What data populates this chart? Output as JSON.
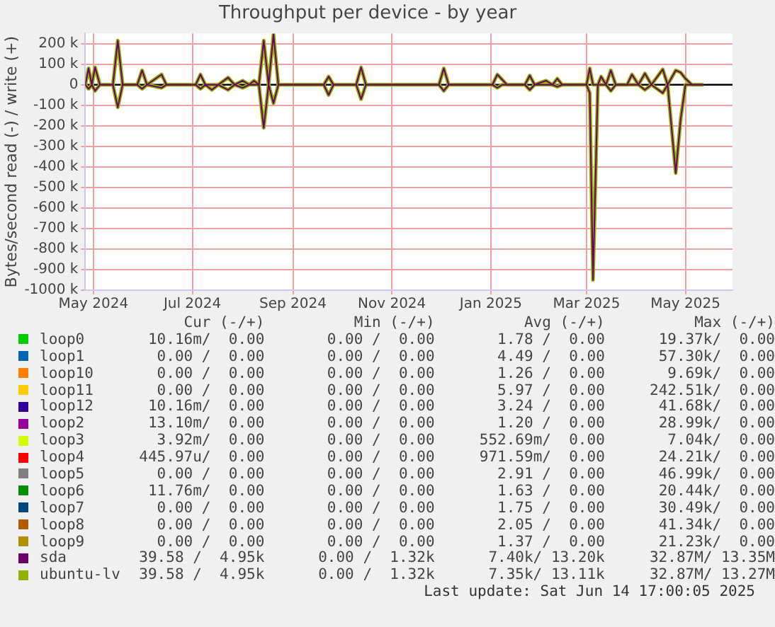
{
  "chart_data": {
    "type": "line",
    "title": "Throughput per device - by year",
    "ylabel": "Bytes/second read (-) / write (+)",
    "x": [
      "2024-04-26",
      "2024-04-28",
      "2024-04-30",
      "2024-05-02",
      "2024-05-05",
      "2024-05-13",
      "2024-05-16",
      "2024-05-19",
      "2024-05-28",
      "2024-05-31",
      "2024-06-03",
      "2024-06-12",
      "2024-06-15",
      "2024-07-03",
      "2024-07-06",
      "2024-07-09",
      "2024-07-13",
      "2024-07-17",
      "2024-07-23",
      "2024-07-27",
      "2024-08-01",
      "2024-08-05",
      "2024-08-08",
      "2024-08-11",
      "2024-08-14",
      "2024-08-17",
      "2024-08-20",
      "2024-08-23",
      "2024-09-20",
      "2024-09-23",
      "2024-09-26",
      "2024-10-10",
      "2024-10-13",
      "2024-10-16",
      "2024-11-30",
      "2024-12-03",
      "2024-12-06",
      "2025-01-02",
      "2025-01-05",
      "2025-01-08",
      "2025-01-11",
      "2025-01-22",
      "2025-01-25",
      "2025-01-28",
      "2025-02-04",
      "2025-02-08",
      "2025-02-11",
      "2025-02-14",
      "2025-03-01",
      "2025-03-03",
      "2025-03-05",
      "2025-03-08",
      "2025-03-10",
      "2025-03-13",
      "2025-03-16",
      "2025-03-19",
      "2025-03-26",
      "2025-03-29",
      "2025-04-02",
      "2025-04-06",
      "2025-04-10",
      "2025-04-17",
      "2025-04-20",
      "2025-04-25",
      "2025-04-28",
      "2025-05-01",
      "2025-05-05",
      "2025-05-12"
    ],
    "series": [
      {
        "name": "loop0",
        "color": "#00cc00",
        "values": [
          null,
          null,
          null,
          null,
          null,
          null,
          null,
          null,
          null,
          null,
          null,
          null,
          null,
          null,
          null,
          null,
          null,
          null,
          null,
          null,
          null,
          null,
          null,
          null,
          null,
          null,
          null,
          null,
          null,
          null,
          null,
          null,
          null,
          null,
          null,
          null,
          null,
          null,
          null,
          null,
          null,
          null,
          null,
          null,
          null,
          null,
          null,
          null,
          null,
          null,
          null,
          null,
          null,
          null,
          null,
          null,
          null,
          null,
          null,
          null,
          null,
          null,
          null,
          null,
          null,
          null,
          null,
          null
        ]
      },
      {
        "name": "loop1",
        "color": "#0066b3",
        "values": [
          null,
          null,
          null,
          null,
          null,
          null,
          null,
          null,
          null,
          null,
          null,
          null,
          null,
          null,
          null,
          null,
          null,
          null,
          null,
          null,
          null,
          null,
          null,
          null,
          null,
          null,
          null,
          null,
          null,
          null,
          null,
          null,
          null,
          null,
          null,
          null,
          null,
          null,
          null,
          null,
          null,
          null,
          null,
          null,
          null,
          null,
          null,
          null,
          null,
          null,
          null,
          null,
          null,
          null,
          null,
          null,
          null,
          null,
          null,
          null,
          null,
          null,
          null,
          null,
          null,
          null,
          null,
          null
        ]
      },
      {
        "name": "loop10",
        "color": "#ff8000",
        "values": [
          null,
          null,
          null,
          null,
          null,
          null,
          null,
          null,
          null,
          null,
          null,
          null,
          null,
          null,
          null,
          null,
          null,
          null,
          null,
          null,
          null,
          null,
          null,
          null,
          null,
          null,
          null,
          null,
          null,
          null,
          null,
          null,
          null,
          null,
          null,
          null,
          null,
          null,
          null,
          null,
          null,
          null,
          null,
          null,
          null,
          null,
          null,
          null,
          null,
          null,
          null,
          null,
          null,
          null,
          null,
          null,
          null,
          null,
          null,
          null,
          null,
          null,
          null,
          null,
          null,
          null,
          null,
          null
        ]
      },
      {
        "name": "loop11",
        "color": "#ffcc00",
        "values": [
          null,
          null,
          null,
          null,
          null,
          null,
          null,
          null,
          null,
          null,
          null,
          null,
          null,
          null,
          null,
          null,
          null,
          null,
          null,
          null,
          null,
          null,
          null,
          null,
          null,
          null,
          null,
          null,
          null,
          null,
          null,
          null,
          null,
          null,
          null,
          null,
          null,
          null,
          null,
          null,
          null,
          null,
          null,
          null,
          null,
          null,
          null,
          null,
          null,
          null,
          null,
          null,
          null,
          null,
          null,
          null,
          null,
          null,
          null,
          null,
          null,
          null,
          null,
          null,
          null,
          null,
          null,
          null
        ]
      },
      {
        "name": "loop12",
        "color": "#330099",
        "values": [
          null,
          null,
          null,
          null,
          null,
          null,
          null,
          null,
          null,
          null,
          null,
          null,
          null,
          null,
          null,
          null,
          null,
          null,
          null,
          null,
          null,
          null,
          null,
          null,
          null,
          null,
          null,
          null,
          null,
          null,
          null,
          null,
          null,
          null,
          null,
          null,
          null,
          null,
          null,
          null,
          null,
          null,
          null,
          null,
          null,
          null,
          null,
          null,
          null,
          null,
          null,
          null,
          null,
          null,
          null,
          null,
          null,
          null,
          null,
          null,
          null,
          null,
          null,
          null,
          null,
          null,
          null,
          null
        ]
      },
      {
        "name": "loop2",
        "color": "#990099",
        "values": [
          null,
          null,
          null,
          null,
          null,
          null,
          null,
          null,
          null,
          null,
          null,
          null,
          null,
          null,
          null,
          null,
          null,
          null,
          null,
          null,
          null,
          null,
          null,
          null,
          null,
          null,
          null,
          null,
          null,
          null,
          null,
          null,
          null,
          null,
          null,
          null,
          null,
          null,
          null,
          null,
          null,
          null,
          null,
          null,
          null,
          null,
          null,
          null,
          null,
          null,
          null,
          null,
          null,
          null,
          null,
          null,
          null,
          null,
          null,
          null,
          null,
          null,
          null,
          null,
          null,
          null,
          null,
          null
        ]
      },
      {
        "name": "loop3",
        "color": "#ccff00",
        "values": [
          null,
          null,
          null,
          null,
          null,
          null,
          null,
          null,
          null,
          null,
          null,
          null,
          null,
          null,
          null,
          null,
          null,
          null,
          null,
          null,
          null,
          null,
          null,
          null,
          null,
          null,
          null,
          null,
          null,
          null,
          null,
          null,
          null,
          null,
          null,
          null,
          null,
          null,
          null,
          null,
          null,
          null,
          null,
          null,
          null,
          null,
          null,
          null,
          null,
          null,
          null,
          null,
          null,
          null,
          null,
          null,
          null,
          null,
          null,
          null,
          null,
          null,
          null,
          null,
          null,
          null,
          null,
          null
        ]
      },
      {
        "name": "loop4",
        "color": "#ff0000",
        "values": [
          null,
          null,
          null,
          null,
          null,
          null,
          null,
          null,
          null,
          null,
          null,
          null,
          null,
          null,
          null,
          null,
          null,
          null,
          null,
          null,
          null,
          null,
          null,
          null,
          null,
          null,
          null,
          null,
          null,
          null,
          null,
          null,
          null,
          null,
          null,
          null,
          null,
          null,
          null,
          null,
          null,
          null,
          null,
          null,
          null,
          null,
          null,
          null,
          null,
          null,
          null,
          null,
          null,
          null,
          null,
          null,
          null,
          null,
          null,
          null,
          null,
          null,
          null,
          null,
          null,
          null,
          null,
          null
        ]
      },
      {
        "name": "loop5",
        "color": "#808080",
        "values": [
          null,
          null,
          null,
          null,
          null,
          null,
          null,
          null,
          null,
          null,
          null,
          null,
          null,
          null,
          null,
          null,
          null,
          null,
          null,
          null,
          null,
          null,
          null,
          null,
          null,
          null,
          null,
          null,
          null,
          null,
          null,
          null,
          null,
          null,
          null,
          null,
          null,
          null,
          null,
          null,
          null,
          null,
          null,
          null,
          null,
          null,
          null,
          null,
          null,
          null,
          null,
          null,
          null,
          null,
          null,
          null,
          null,
          null,
          null,
          null,
          null,
          null,
          null,
          null,
          null,
          null,
          null,
          null
        ]
      },
      {
        "name": "loop6",
        "color": "#008f00",
        "values": [
          null,
          null,
          null,
          null,
          null,
          null,
          null,
          null,
          null,
          null,
          null,
          null,
          null,
          null,
          null,
          null,
          null,
          null,
          null,
          null,
          null,
          null,
          null,
          null,
          null,
          null,
          null,
          null,
          null,
          null,
          null,
          null,
          null,
          null,
          null,
          null,
          null,
          null,
          null,
          null,
          null,
          null,
          null,
          null,
          null,
          null,
          null,
          null,
          null,
          null,
          null,
          null,
          null,
          null,
          null,
          null,
          null,
          null,
          null,
          null,
          null,
          null,
          null,
          null,
          null,
          null,
          null,
          null
        ]
      },
      {
        "name": "loop7",
        "color": "#00487d",
        "values": [
          null,
          null,
          null,
          null,
          null,
          null,
          null,
          null,
          null,
          null,
          null,
          null,
          null,
          null,
          null,
          null,
          null,
          null,
          null,
          null,
          null,
          null,
          null,
          null,
          null,
          null,
          null,
          null,
          null,
          null,
          null,
          null,
          null,
          null,
          null,
          null,
          null,
          null,
          null,
          null,
          null,
          null,
          null,
          null,
          null,
          null,
          null,
          null,
          null,
          null,
          null,
          null,
          null,
          null,
          null,
          null,
          null,
          null,
          null,
          null,
          null,
          null,
          null,
          null,
          null,
          null,
          null,
          null
        ]
      },
      {
        "name": "loop8",
        "color": "#b35a00",
        "values": [
          null,
          null,
          null,
          null,
          null,
          null,
          null,
          null,
          null,
          null,
          null,
          null,
          null,
          null,
          null,
          null,
          null,
          null,
          null,
          null,
          null,
          null,
          null,
          null,
          null,
          null,
          null,
          null,
          null,
          null,
          null,
          null,
          null,
          null,
          null,
          null,
          null,
          null,
          null,
          null,
          null,
          null,
          null,
          null,
          null,
          null,
          null,
          null,
          null,
          null,
          null,
          null,
          null,
          null,
          null,
          null,
          null,
          null,
          null,
          null,
          null,
          null,
          null,
          null,
          null,
          null,
          null,
          null
        ]
      },
      {
        "name": "loop9",
        "color": "#b38f00",
        "values": [
          null,
          null,
          null,
          null,
          null,
          null,
          null,
          null,
          null,
          null,
          null,
          null,
          null,
          null,
          null,
          null,
          null,
          null,
          null,
          null,
          null,
          null,
          null,
          null,
          null,
          null,
          null,
          null,
          null,
          null,
          null,
          null,
          null,
          null,
          null,
          null,
          null,
          null,
          null,
          null,
          null,
          null,
          null,
          null,
          null,
          null,
          null,
          null,
          null,
          null,
          null,
          null,
          null,
          null,
          null,
          null,
          null,
          null,
          null,
          null,
          null,
          null,
          null,
          null,
          null,
          null,
          null,
          null
        ]
      },
      {
        "name": "sda",
        "color": "#6b006b",
        "values": [
          0,
          80000,
          0,
          85000,
          0,
          0,
          215000,
          0,
          0,
          70000,
          0,
          50000,
          0,
          0,
          50000,
          0,
          0,
          0,
          35000,
          0,
          20000,
          0,
          20000,
          0,
          215000,
          0,
          245000,
          0,
          0,
          40000,
          0,
          0,
          85000,
          0,
          0,
          80000,
          0,
          0,
          50000,
          25000,
          0,
          0,
          45000,
          0,
          20000,
          0,
          30000,
          0,
          0,
          80000,
          0,
          0,
          40000,
          0,
          70000,
          0,
          0,
          50000,
          0,
          55000,
          0,
          75000,
          0,
          70000,
          60000,
          30000,
          0,
          0
        ]
      },
      {
        "color": "#6b006b",
        "values": [
          0,
          -20000,
          0,
          -30000,
          0,
          0,
          -110000,
          0,
          0,
          -20000,
          0,
          -15000,
          0,
          0,
          -20000,
          0,
          -25000,
          0,
          -25000,
          0,
          -15000,
          0,
          0,
          0,
          -210000,
          0,
          -90000,
          0,
          0,
          -50000,
          0,
          0,
          -70000,
          0,
          0,
          -30000,
          0,
          0,
          -15000,
          0,
          0,
          0,
          -25000,
          0,
          0,
          0,
          -10000,
          0,
          0,
          -40000,
          -950000,
          0,
          0,
          0,
          -30000,
          0,
          0,
          0,
          0,
          -25000,
          0,
          -40000,
          0,
          -430000,
          -170000,
          0,
          0,
          0
        ]
      },
      {
        "name": "ubuntu-lv",
        "color": "#8fb300",
        "values": [
          0,
          80000,
          0,
          85000,
          0,
          0,
          215000,
          0,
          0,
          70000,
          0,
          50000,
          0,
          0,
          50000,
          0,
          0,
          0,
          35000,
          0,
          20000,
          0,
          20000,
          0,
          215000,
          0,
          245000,
          0,
          0,
          40000,
          0,
          0,
          85000,
          0,
          0,
          80000,
          0,
          0,
          50000,
          25000,
          0,
          0,
          45000,
          0,
          20000,
          0,
          30000,
          0,
          0,
          80000,
          0,
          0,
          40000,
          0,
          70000,
          0,
          0,
          50000,
          0,
          55000,
          0,
          75000,
          0,
          70000,
          60000,
          30000,
          0,
          0
        ]
      },
      {
        "color": "#8fb300",
        "values": [
          0,
          -20000,
          0,
          -30000,
          0,
          0,
          -110000,
          0,
          0,
          -20000,
          0,
          -15000,
          0,
          0,
          -20000,
          0,
          -25000,
          0,
          -25000,
          0,
          -15000,
          0,
          0,
          0,
          -210000,
          0,
          -90000,
          0,
          0,
          -50000,
          0,
          0,
          -70000,
          0,
          0,
          -30000,
          0,
          0,
          -15000,
          0,
          0,
          0,
          -25000,
          0,
          0,
          0,
          -10000,
          0,
          0,
          -40000,
          -950000,
          0,
          0,
          0,
          -30000,
          0,
          0,
          0,
          0,
          -25000,
          0,
          -40000,
          0,
          -430000,
          -170000,
          0,
          0,
          0
        ]
      }
    ],
    "xlim": [
      "2024-04-26",
      "2025-05-30"
    ],
    "xticks": [
      {
        "value": "2024-05-01",
        "label": "May 2024"
      },
      {
        "value": "2024-07-01",
        "label": "Jul 2024"
      },
      {
        "value": "2024-09-01",
        "label": "Sep 2024"
      },
      {
        "value": "2024-11-01",
        "label": "Nov 2024"
      },
      {
        "value": "2025-01-01",
        "label": "Jan 2025"
      },
      {
        "value": "2025-03-01",
        "label": "Mar 2025"
      },
      {
        "value": "2025-05-01",
        "label": "May 2025"
      }
    ],
    "ylim": [
      -1000000,
      250000
    ],
    "yticks": [
      {
        "value": -1000000,
        "label": "-1000 k"
      },
      {
        "value": -900000,
        "label": "-900 k"
      },
      {
        "value": -800000,
        "label": "-800 k"
      },
      {
        "value": -700000,
        "label": "-700 k"
      },
      {
        "value": -600000,
        "label": "-600 k"
      },
      {
        "value": -500000,
        "label": "-500 k"
      },
      {
        "value": -400000,
        "label": "-400 k"
      },
      {
        "value": -300000,
        "label": "-300 k"
      },
      {
        "value": -200000,
        "label": "-200 k"
      },
      {
        "value": -100000,
        "label": "-100 k"
      },
      {
        "value": 0,
        "label": "0"
      },
      {
        "value": 100000,
        "label": "100 k"
      },
      {
        "value": 200000,
        "label": "200 k"
      }
    ],
    "ref_lines": [
      {
        "axis": "y",
        "value": 0,
        "color": "#000000"
      }
    ],
    "grid": true,
    "legend": "bottom",
    "marker": "none",
    "line_style": "solid",
    "annotations": [
      "       Cur (-/+)          Min (-/+)          Avg (-/+)          Max (-/+)",
      "  10.16m/  0.00       0.00 /  0.00       1.78 /  0.00      19.37k/  0.00",
      "   0.00 /  0.00       0.00 /  0.00       4.49 /  0.00      57.30k/  0.00",
      "   0.00 /  0.00       0.00 /  0.00       1.26 /  0.00       9.69k/  0.00",
      "   0.00 /  0.00       0.00 /  0.00       5.97 /  0.00     242.51k/  0.00",
      "  10.16m/  0.00       0.00 /  0.00       3.24 /  0.00      41.68k/  0.00",
      "  13.10m/  0.00       0.00 /  0.00       1.20 /  0.00      28.99k/  0.00",
      "   3.92m/  0.00       0.00 /  0.00     552.69m/  0.00       7.04k/  0.00",
      " 445.97u/  0.00       0.00 /  0.00     971.59m/  0.00      24.21k/  0.00",
      "   0.00 /  0.00       0.00 /  0.00       2.91 /  0.00      46.99k/  0.00",
      "  11.76m/  0.00       0.00 /  0.00       1.63 /  0.00      20.44k/  0.00",
      "   0.00 /  0.00       0.00 /  0.00       1.75 /  0.00      30.49k/  0.00",
      "   0.00 /  0.00       0.00 /  0.00       2.05 /  0.00      41.34k/  0.00",
      "   0.00 /  0.00       0.00 /  0.00       1.37 /  0.00      21.23k/  0.00",
      "  39.58 /  4.95k      0.00 /  1.32k      7.40k/ 13.20k     32.87M/ 13.35M",
      "  39.58 /  4.95k      0.00 /  1.32k      7.35k/ 13.11k     32.87M/ 13.27M",
      "Last update: Sat Jun 14 17:00:05 2025"
    ]
  }
}
